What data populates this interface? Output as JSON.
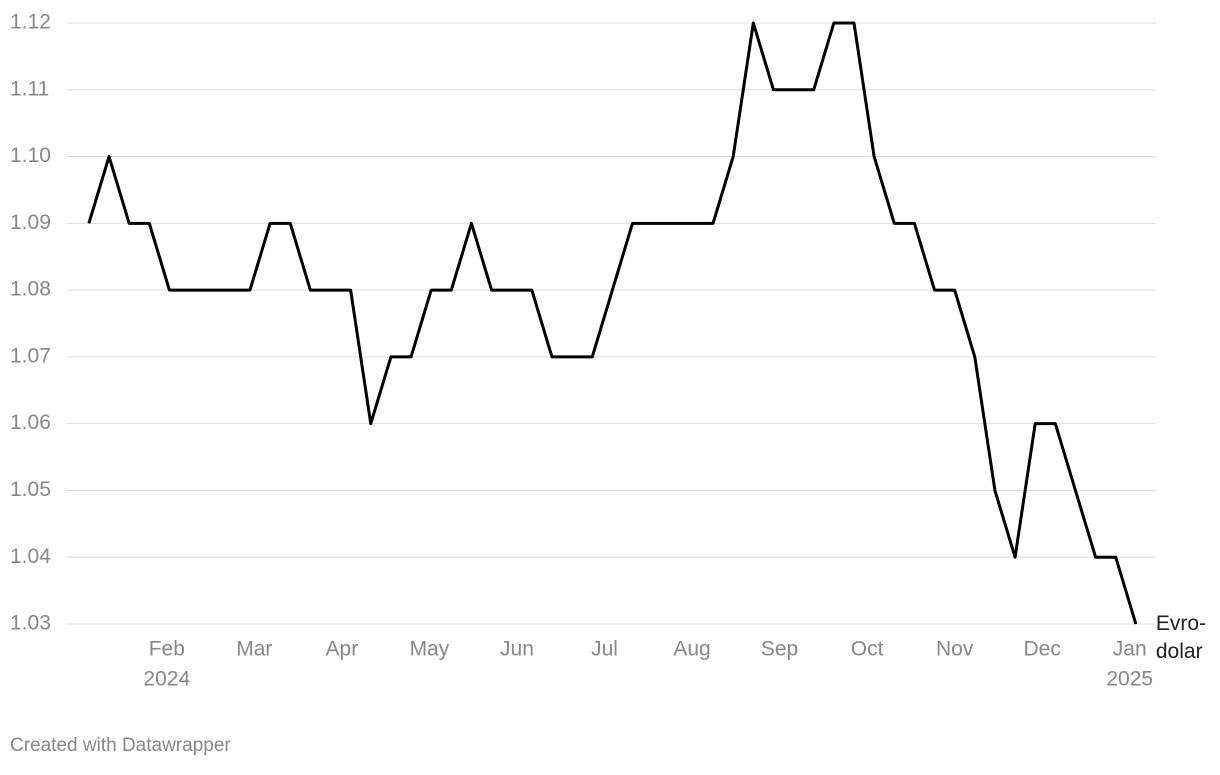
{
  "chart_data": {
    "type": "line",
    "series": [
      {
        "name": "Evro-dolar",
        "color": "#000000",
        "values": [
          1.09,
          1.1,
          1.09,
          1.09,
          1.08,
          1.08,
          1.08,
          1.08,
          1.08,
          1.09,
          1.09,
          1.08,
          1.08,
          1.08,
          1.06,
          1.07,
          1.07,
          1.08,
          1.08,
          1.09,
          1.08,
          1.08,
          1.08,
          1.07,
          1.07,
          1.07,
          1.08,
          1.09,
          1.09,
          1.09,
          1.09,
          1.09,
          1.1,
          1.12,
          1.11,
          1.11,
          1.11,
          1.12,
          1.12,
          1.1,
          1.09,
          1.09,
          1.08,
          1.08,
          1.07,
          1.05,
          1.04,
          1.06,
          1.06,
          1.05,
          1.04,
          1.04,
          1.03
        ]
      }
    ],
    "x": [
      0.11,
      0.34,
      0.57,
      0.8,
      1.03,
      1.26,
      1.49,
      1.72,
      1.95,
      2.18,
      2.41,
      2.64,
      2.87,
      3.1,
      3.33,
      3.56,
      3.79,
      4.02,
      4.25,
      4.48,
      4.71,
      4.94,
      5.17,
      5.4,
      5.63,
      5.86,
      6.09,
      6.32,
      6.55,
      6.78,
      7.01,
      7.24,
      7.47,
      7.7,
      7.93,
      8.16,
      8.39,
      8.62,
      8.85,
      9.08,
      9.31,
      9.54,
      9.77,
      10.0,
      10.23,
      10.46,
      10.69,
      10.92,
      11.15,
      11.38,
      11.61,
      11.84,
      12.07
    ],
    "xlim": [
      -0.14,
      12.3
    ],
    "xticks": [
      {
        "value": 1,
        "label": "Feb"
      },
      {
        "value": 2,
        "label": "Mar"
      },
      {
        "value": 3,
        "label": "Apr"
      },
      {
        "value": 4,
        "label": "May"
      },
      {
        "value": 5,
        "label": "Jun"
      },
      {
        "value": 6,
        "label": "Jul"
      },
      {
        "value": 7,
        "label": "Aug"
      },
      {
        "value": 8,
        "label": "Sep"
      },
      {
        "value": 9,
        "label": "Oct"
      },
      {
        "value": 10,
        "label": "Nov"
      },
      {
        "value": 11,
        "label": "Dec"
      },
      {
        "value": 12,
        "label": "Jan"
      }
    ],
    "xtick_years": [
      {
        "value": 1,
        "label": "2024"
      },
      {
        "value": 12,
        "label": "2025"
      }
    ],
    "ylim": [
      1.03,
      1.12
    ],
    "yticks": [
      1.03,
      1.04,
      1.05,
      1.06,
      1.07,
      1.08,
      1.09,
      {
        "value": 1.1,
        "label": "1.10"
      },
      1.11,
      1.12
    ],
    "grid": true,
    "footer": "Created with Datawrapper"
  }
}
